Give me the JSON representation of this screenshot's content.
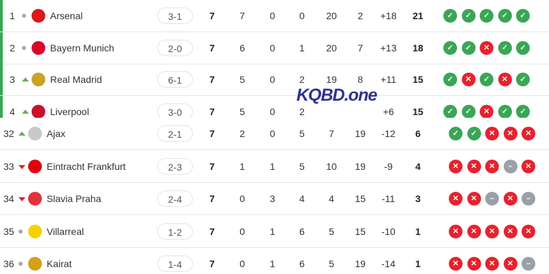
{
  "colors": {
    "win": "#3aa655",
    "loss": "#e8212e",
    "draw": "#9aa0a6",
    "qualify_bar": "#3aa655"
  },
  "top_rows": [
    {
      "rank": "1",
      "move": "same",
      "team": "Arsenal",
      "logo_color": "#d7191c",
      "last": "3-1",
      "p": "7",
      "w": "7",
      "d": "0",
      "l": "0",
      "gf": "20",
      "ga": "2",
      "gd": "+18",
      "pts": "21",
      "form": [
        "W",
        "W",
        "W",
        "W",
        "W"
      ]
    },
    {
      "rank": "2",
      "move": "same",
      "team": "Bayern Munich",
      "logo_color": "#dc052d",
      "last": "2-0",
      "p": "7",
      "w": "6",
      "d": "0",
      "l": "1",
      "gf": "20",
      "ga": "7",
      "gd": "+13",
      "pts": "18",
      "form": [
        "W",
        "W",
        "L",
        "W",
        "W"
      ]
    },
    {
      "rank": "3",
      "move": "up",
      "team": "Real Madrid",
      "logo_color": "#c9a227",
      "last": "6-1",
      "p": "7",
      "w": "5",
      "d": "0",
      "l": "2",
      "gf": "19",
      "ga": "8",
      "gd": "+11",
      "pts": "15",
      "form": [
        "W",
        "L",
        "W",
        "L",
        "W"
      ]
    },
    {
      "rank": "4",
      "move": "up",
      "team": "Liverpool",
      "logo_color": "#c8102e",
      "last": "3-0",
      "p": "7",
      "w": "5",
      "d": "0",
      "l": "2",
      "gf": "",
      "ga": "",
      "gd": "+6",
      "pts": "15",
      "form": [
        "W",
        "W",
        "L",
        "W",
        "W"
      ]
    }
  ],
  "bottom_rows": [
    {
      "rank": "32",
      "move": "up",
      "team": "Ajax",
      "logo_color": "#c8c8c8",
      "last": "2-1",
      "p": "7",
      "w": "2",
      "d": "0",
      "l": "5",
      "gf": "7",
      "ga": "19",
      "gd": "-12",
      "pts": "6",
      "form": [
        "W",
        "W",
        "L",
        "L",
        "L"
      ]
    },
    {
      "rank": "33",
      "move": "down",
      "team": "Eintracht Frankfurt",
      "logo_color": "#e1000f",
      "last": "2-3",
      "p": "7",
      "w": "1",
      "d": "1",
      "l": "5",
      "gf": "10",
      "ga": "19",
      "gd": "-9",
      "pts": "4",
      "form": [
        "L",
        "L",
        "L",
        "D",
        "L"
      ]
    },
    {
      "rank": "34",
      "move": "down",
      "team": "Slavia Praha",
      "logo_color": "#e2313b",
      "last": "2-4",
      "p": "7",
      "w": "0",
      "d": "3",
      "l": "4",
      "gf": "4",
      "ga": "15",
      "gd": "-11",
      "pts": "3",
      "form": [
        "L",
        "L",
        "D",
        "L",
        "D"
      ]
    },
    {
      "rank": "35",
      "move": "same",
      "team": "Villarreal",
      "logo_color": "#f5d100",
      "last": "1-2",
      "p": "7",
      "w": "0",
      "d": "1",
      "l": "6",
      "gf": "5",
      "ga": "15",
      "gd": "-10",
      "pts": "1",
      "form": [
        "L",
        "L",
        "L",
        "L",
        "L"
      ]
    },
    {
      "rank": "36",
      "move": "same",
      "team": "Kairat",
      "logo_color": "#d4a017",
      "last": "1-4",
      "p": "7",
      "w": "0",
      "d": "1",
      "l": "6",
      "gf": "5",
      "ga": "19",
      "gd": "-14",
      "pts": "1",
      "form": [
        "L",
        "L",
        "L",
        "L",
        "D"
      ]
    }
  ],
  "watermark": "KQBD.one"
}
